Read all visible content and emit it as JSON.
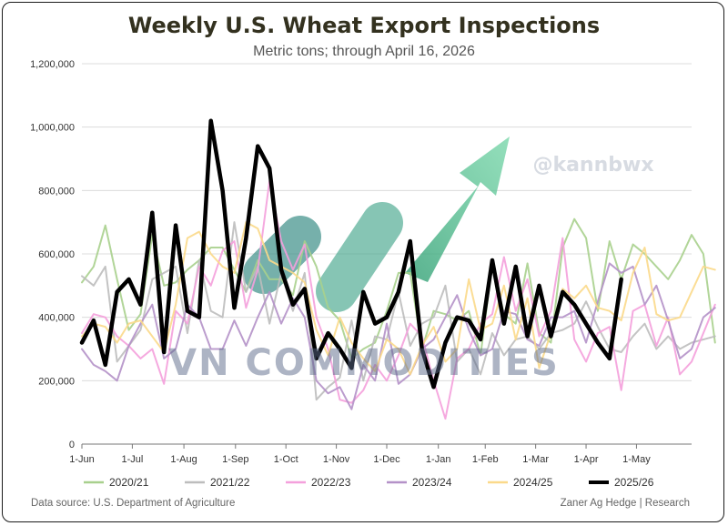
{
  "chart_data": {
    "type": "line",
    "title": "Weekly U.S. Wheat Export Inspections",
    "subtitle": "Metric tons; through April 16, 2026",
    "ylim": [
      0,
      1200000
    ],
    "yticks": [
      0,
      200000,
      400000,
      600000,
      800000,
      1000000,
      1200000
    ],
    "ytick_labels": [
      "0",
      "200,000",
      "400,000",
      "600,000",
      "800,000",
      "1,000,000",
      "1,200,000"
    ],
    "xlim": [
      0,
      52
    ],
    "xticks": [
      0,
      4.3,
      8.7,
      13.1,
      17.4,
      21.7,
      26,
      30.4,
      34.4,
      38.7,
      43,
      47.3
    ],
    "xtick_labels": [
      "1-Jun",
      "1-Jul",
      "1-Aug",
      "1-Sep",
      "1-Oct",
      "1-Nov",
      "1-Dec",
      "1-Jan",
      "1-Feb",
      "1-Mar",
      "1-Apr",
      "1-May"
    ],
    "legend_position": "bottom",
    "grid": true,
    "series": [
      {
        "name": "2020/21",
        "color": "#a8d08d",
        "width": 2,
        "values": [
          510000,
          560000,
          690000,
          520000,
          360000,
          410000,
          660000,
          500000,
          510000,
          550000,
          580000,
          620000,
          620000,
          550000,
          480000,
          580000,
          520000,
          520000,
          470000,
          640000,
          560000,
          430000,
          390000,
          270000,
          300000,
          320000,
          420000,
          540000,
          540000,
          300000,
          420000,
          410000,
          390000,
          420000,
          280000,
          570000,
          410000,
          380000,
          570000,
          350000,
          320000,
          620000,
          710000,
          650000,
          420000,
          640000,
          520000,
          630000,
          600000,
          560000,
          520000,
          580000,
          660000,
          600000,
          320000
        ]
      },
      {
        "name": "2021/22",
        "color": "#bdbdbd",
        "width": 2,
        "values": [
          530000,
          500000,
          560000,
          260000,
          310000,
          360000,
          520000,
          540000,
          560000,
          350000,
          580000,
          420000,
          400000,
          700000,
          480000,
          560000,
          380000,
          540000,
          420000,
          540000,
          140000,
          180000,
          210000,
          390000,
          200000,
          340000,
          330000,
          480000,
          310000,
          380000,
          400000,
          500000,
          260000,
          300000,
          220000,
          350000,
          280000,
          330000,
          340000,
          300000,
          350000,
          360000,
          380000,
          450000,
          370000,
          300000,
          290000,
          340000,
          380000,
          300000,
          340000,
          300000,
          320000,
          330000,
          340000
        ]
      },
      {
        "name": "2022/23",
        "color": "#f4a0dc",
        "width": 2,
        "values": [
          350000,
          410000,
          400000,
          340000,
          310000,
          270000,
          300000,
          190000,
          420000,
          380000,
          560000,
          500000,
          610000,
          640000,
          430000,
          550000,
          830000,
          640000,
          550000,
          630000,
          400000,
          300000,
          140000,
          130000,
          170000,
          250000,
          200000,
          280000,
          380000,
          340000,
          200000,
          80000,
          270000,
          300000,
          380000,
          410000,
          590000,
          420000,
          520000,
          340000,
          420000,
          650000,
          330000,
          260000,
          350000,
          370000,
          170000,
          420000,
          440000,
          310000,
          400000,
          220000,
          260000,
          350000,
          440000
        ]
      },
      {
        "name": "2023/24",
        "color": "#b491c8",
        "width": 2,
        "values": [
          300000,
          250000,
          230000,
          200000,
          310000,
          380000,
          440000,
          270000,
          300000,
          440000,
          400000,
          300000,
          300000,
          390000,
          310000,
          400000,
          480000,
          380000,
          460000,
          400000,
          200000,
          160000,
          180000,
          110000,
          250000,
          200000,
          380000,
          190000,
          220000,
          300000,
          330000,
          400000,
          470000,
          360000,
          280000,
          300000,
          420000,
          410000,
          330000,
          310000,
          400000,
          400000,
          420000,
          320000,
          450000,
          570000,
          540000,
          560000,
          440000,
          500000,
          390000,
          270000,
          300000,
          400000,
          430000
        ]
      },
      {
        "name": "2024/25",
        "color": "#fbd98a",
        "width": 2,
        "values": [
          340000,
          380000,
          370000,
          320000,
          380000,
          390000,
          340000,
          290000,
          440000,
          650000,
          670000,
          600000,
          560000,
          540000,
          700000,
          680000,
          580000,
          560000,
          540000,
          510000,
          360000,
          280000,
          400000,
          320000,
          270000,
          230000,
          330000,
          300000,
          220000,
          310000,
          370000,
          260000,
          300000,
          520000,
          360000,
          380000,
          500000,
          330000,
          460000,
          240000,
          350000,
          490000,
          460000,
          500000,
          430000,
          420000,
          390000,
          540000,
          620000,
          410000,
          390000,
          400000,
          480000,
          560000,
          550000
        ]
      },
      {
        "name": "2025/26",
        "color": "#000000",
        "width": 4.5,
        "values": [
          320000,
          390000,
          250000,
          480000,
          520000,
          440000,
          730000,
          290000,
          690000,
          420000,
          400000,
          1020000,
          800000,
          430000,
          650000,
          940000,
          870000,
          550000,
          440000,
          490000,
          270000,
          350000,
          300000,
          240000,
          480000,
          380000,
          400000,
          480000,
          640000,
          300000,
          180000,
          320000,
          400000,
          390000,
          330000,
          580000,
          380000,
          560000,
          340000,
          500000,
          340000,
          480000,
          440000,
          380000,
          320000,
          270000,
          520000
        ]
      }
    ],
    "watermark_text": "VN COMMODITIES",
    "handle_text": "@kannbwx"
  },
  "footer": {
    "source": "Data source: U.S. Department of Agriculture",
    "credit": "Zaner Ag Hedge | Research"
  }
}
